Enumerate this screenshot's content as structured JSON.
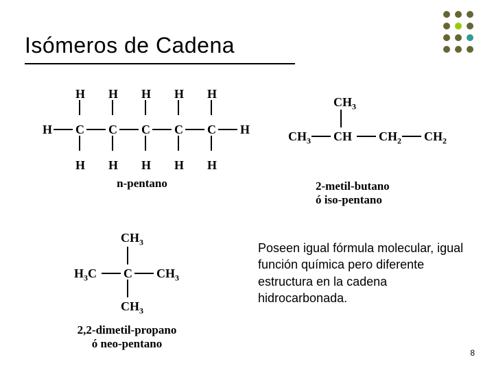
{
  "title": "Isómeros de Cadena",
  "body_text": "Poseen igual fórmula molecular, igual función química pero diferente estructura en la cadena hidrocarbonada.",
  "page_number": "8",
  "dot_colors": {
    "olive": "#666633",
    "lime": "#99cc00",
    "teal": "#339999"
  },
  "molecules": {
    "npentane": {
      "name_lines": [
        "n-pentano"
      ],
      "atoms_top": [
        "H",
        "H",
        "H",
        "H",
        "H"
      ],
      "atoms_mid": [
        "H",
        "C",
        "C",
        "C",
        "C",
        "C",
        "H"
      ],
      "atoms_bottom": [
        "H",
        "H",
        "H",
        "H",
        "H"
      ]
    },
    "isopentane": {
      "name_lines": [
        "2-metil-butano",
        "ó iso-pentano"
      ],
      "branch": "CH",
      "branch_sub": "3",
      "chain": [
        {
          "t": "CH",
          "sub": "3"
        },
        {
          "t": "CH",
          "sub": ""
        },
        {
          "t": "CH",
          "sub": "2"
        },
        {
          "t": "CH",
          "sub": "2"
        }
      ]
    },
    "neopentane": {
      "name_lines": [
        "2,2-dimetil-propano",
        "ó neo-pentano"
      ],
      "top": {
        "t": "CH",
        "sub": "3"
      },
      "left": {
        "t": "H",
        "sub": "3",
        "post": "C"
      },
      "center": {
        "t": "C"
      },
      "right": {
        "t": "CH",
        "sub": "3"
      },
      "bottom": {
        "t": "CH",
        "sub": "3"
      }
    }
  },
  "layout": {
    "title_fontsize": 32,
    "body_fontsize": 18,
    "label_fontsize": 17,
    "atom_fontsize": 18
  }
}
